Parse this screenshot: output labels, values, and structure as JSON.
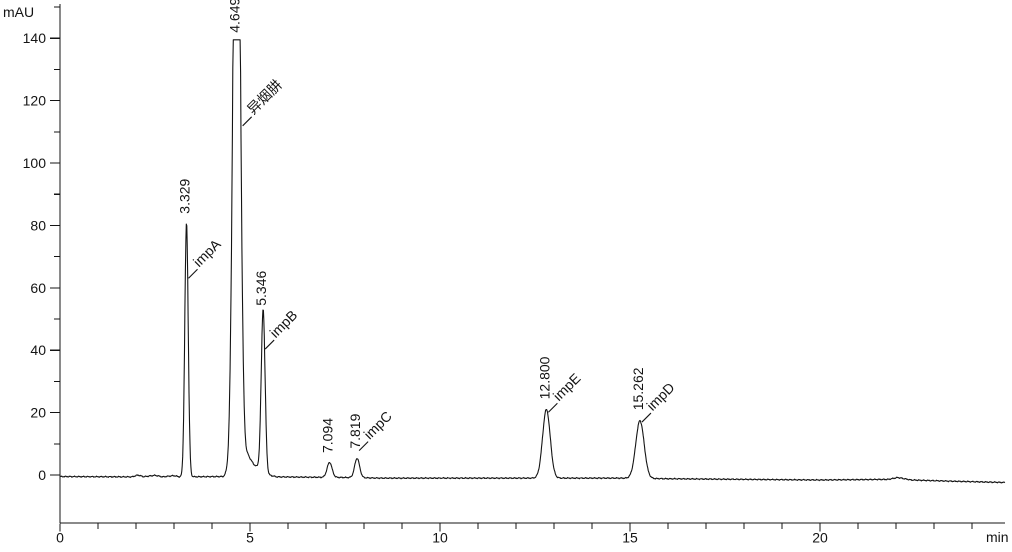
{
  "chart_data": {
    "type": "line",
    "chart_kind": "hplc-chromatogram",
    "title": "",
    "background_color": "#ffffff",
    "trace_color": "#141414",
    "axis_color": "#141414",
    "grid": false,
    "legend": false,
    "x_axis": {
      "label": "min",
      "min": 0,
      "max": 24.87,
      "major_ticks": [
        0,
        5,
        10,
        15,
        20
      ],
      "minor_tick_interval": 1
    },
    "y_axis": {
      "label": "mAU",
      "display_min": -15.4,
      "display_max": 150.9,
      "major_ticks": [
        0,
        20,
        40,
        60,
        80,
        100,
        120,
        140
      ],
      "minor_tick_interval": 10
    },
    "y_clip_mau": 139.5,
    "peaks": [
      {
        "rt": 3.329,
        "rt_label": "3.329",
        "name": "impA",
        "height_mau": 81.5,
        "sigma_min": 0.045
      },
      {
        "rt": 4.649,
        "rt_label": "4.649",
        "name": "异烟肼",
        "height_mau": 260,
        "sigma_min": 0.085
      },
      {
        "rt": 5.346,
        "rt_label": "5.346",
        "name": "impB",
        "height_mau": 52,
        "sigma_min": 0.05
      },
      {
        "rt": 7.094,
        "rt_label": "7.094",
        "name": "",
        "height_mau": 4.8,
        "sigma_min": 0.065
      },
      {
        "rt": 7.819,
        "rt_label": "7.819",
        "name": "impC",
        "height_mau": 6.2,
        "sigma_min": 0.065
      },
      {
        "rt": 12.8,
        "rt_label": "12.800",
        "name": "impE",
        "height_mau": 22,
        "sigma_min": 0.1
      },
      {
        "rt": 15.262,
        "rt_label": "15.262",
        "name": "impD",
        "height_mau": 18.5,
        "sigma_min": 0.11
      }
    ],
    "baseline_points": [
      [
        0,
        -0.5
      ],
      [
        1.9,
        -0.6
      ],
      [
        2.05,
        0.0
      ],
      [
        2.2,
        -0.55
      ],
      [
        2.5,
        -0.1
      ],
      [
        2.7,
        -0.6
      ],
      [
        3.0,
        -0.2
      ],
      [
        3.15,
        -0.6
      ],
      [
        4.3,
        -0.5
      ],
      [
        4.95,
        6.3
      ],
      [
        5.1,
        3.4
      ],
      [
        5.5,
        0.0
      ],
      [
        5.7,
        -0.6
      ],
      [
        7.5,
        -0.8
      ],
      [
        8.5,
        -1.0
      ],
      [
        12.3,
        -1.0
      ],
      [
        13.5,
        -1.0
      ],
      [
        14.7,
        -1.0
      ],
      [
        16.0,
        -1.2
      ],
      [
        18.0,
        -1.4
      ],
      [
        20.0,
        -1.6
      ],
      [
        21.8,
        -1.4
      ],
      [
        22.05,
        -0.8
      ],
      [
        22.4,
        -1.6
      ],
      [
        23.5,
        -2.0
      ],
      [
        24.87,
        -2.4
      ]
    ],
    "noise_amplitude_mau": 0.22
  }
}
